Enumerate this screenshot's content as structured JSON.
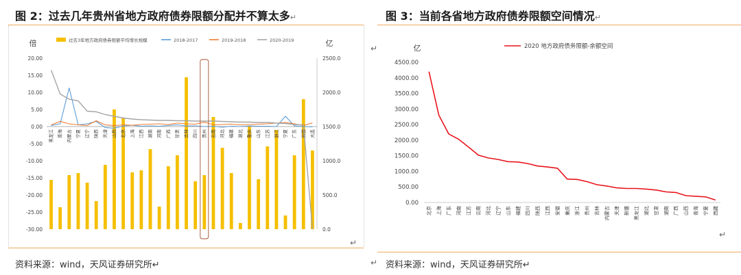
{
  "panels": {
    "left": {
      "title": "图 2：过去几年贵州省地方政府债券限额分配并不算太多",
      "title_mark": "↵",
      "source": "资料来源：wind，天风证券研究所↵",
      "return_mark": "↵"
    },
    "right": {
      "title": "图 3：当前各省地方政府债券限额空间情况",
      "title_mark": "↵",
      "source": "资料来源：wind，天风证券研究所↵",
      "return_mark_left": "↵",
      "return_mark_right": "↵",
      "source_mark": "↵"
    }
  },
  "colors": {
    "bar": "#f5bf00",
    "blue": "#5b9bd5",
    "orange": "#ed7d31",
    "gray": "#a5a5a5",
    "red": "#e8141c",
    "highlight": "#a0522d",
    "rule": "#f0a860"
  },
  "chart_data": [
    {
      "type": "bar",
      "ylabel": "倍",
      "y2label": "亿",
      "ylim": [
        -30,
        20
      ],
      "y2lim": [
        0,
        2500
      ],
      "y_ticks": [
        "20.00",
        "15.00",
        "10.00",
        "5.00",
        "0.00",
        "-5.00",
        "-10.00",
        "-15.00",
        "-20.00",
        "-25.00",
        "-30.00"
      ],
      "y2_ticks": [
        "2500.0",
        "2000.0",
        "1500.0",
        "1000.0",
        "500.0",
        "0.0"
      ],
      "legend": [
        "过去3年地方政府债券限额平均增长规模",
        "2018-2017",
        "2019-2018",
        "2020-2019"
      ],
      "legend_position": "top",
      "categories": [
        "黑龙江",
        "青海",
        "内蒙古",
        "宁夏",
        "辽宁",
        "陕西",
        "天津",
        "山西",
        "北京",
        "上海",
        "江西",
        "湖南",
        "河南",
        "广西",
        "甘肃",
        "吉林",
        "四川",
        "贵州",
        "云南",
        "河北",
        "福建",
        "湖北",
        "重庆",
        "山东",
        "江苏",
        "浙江",
        "宁夏",
        "广东",
        "安徽",
        "大连"
      ],
      "highlight_category": "贵州",
      "series": [
        {
          "name": "过去3年地方政府债券限额平均增长规模",
          "axis": "right",
          "kind": "bar",
          "values": [
            720,
            320,
            790,
            820,
            680,
            410,
            940,
            1750,
            1620,
            830,
            860,
            1170,
            330,
            920,
            1080,
            2220,
            700,
            790,
            1640,
            1190,
            820,
            90,
            1510,
            730,
            1210,
            1450,
            200,
            1080,
            1900,
            1150
          ]
        },
        {
          "name": "2018-2017",
          "axis": "left",
          "kind": "line",
          "values": [
            0.3,
            0.8,
            11.3,
            0.5,
            0.8,
            1.5,
            -0.3,
            -0.5,
            0.2,
            0.4,
            0.1,
            0.2,
            0.1,
            0.3,
            0.5,
            0.2,
            0.2,
            0.0,
            0.1,
            -0.2,
            0.1,
            0.0,
            0.2,
            0.1,
            0.1,
            0.0,
            3.0,
            0.2,
            0.0,
            -0.1
          ]
        },
        {
          "name": "2019-2018",
          "axis": "left",
          "kind": "line",
          "values": [
            0.5,
            1.5,
            0.8,
            0.5,
            0.3,
            1.7,
            0.5,
            0.3,
            0.5,
            0.4,
            0.6,
            0.7,
            0.8,
            0.6,
            1.0,
            0.8,
            0.7,
            1.3,
            0.5,
            0.6,
            0.7,
            0.5,
            0.6,
            0.7,
            0.8,
            1.0,
            1.2,
            0.8,
            0.3,
            1.1
          ]
        },
        {
          "name": "2020-2019",
          "axis": "left",
          "kind": "line",
          "values": [
            16.5,
            9.5,
            8.0,
            7.5,
            4.5,
            4.3,
            3.5,
            3.0,
            2.5,
            2.2,
            2.0,
            1.9,
            1.8,
            1.8,
            1.7,
            1.7,
            1.6,
            1.6,
            1.6,
            1.5,
            1.4,
            1.3,
            1.3,
            1.2,
            1.2,
            1.0,
            0.9,
            0.6,
            0.5,
            -30
          ]
        }
      ]
    },
    {
      "type": "line",
      "ylabel": "亿",
      "ylim": [
        0,
        4500
      ],
      "y_ticks": [
        "4500.00",
        "4000.00",
        "3500.00",
        "3000.00",
        "2500.00",
        "2000.00",
        "1500.00",
        "1000.00",
        "500.00",
        "0.00"
      ],
      "legend_position": "top",
      "series": [
        {
          "name": "2020 地方政府债务限额-余额空间",
          "categories": [
            "北京",
            "上海",
            "广东",
            "河南",
            "江苏",
            "云南",
            "河北",
            "辽宁",
            "山东",
            "福建",
            "四川",
            "陕西",
            "江西",
            "安徽",
            "重庆",
            "浙江",
            "贵州",
            "吉林",
            "内蒙古",
            "天津",
            "新疆",
            "黑龙江",
            "湖北",
            "甘肃",
            "湖南",
            "广西",
            "山西",
            "青海",
            "宁夏",
            "西藏"
          ],
          "values": [
            4200,
            2800,
            2200,
            2030,
            1780,
            1520,
            1430,
            1380,
            1310,
            1300,
            1250,
            1170,
            1140,
            1100,
            750,
            740,
            670,
            570,
            530,
            470,
            450,
            450,
            430,
            400,
            340,
            320,
            220,
            200,
            180,
            80
          ]
        }
      ]
    }
  ]
}
